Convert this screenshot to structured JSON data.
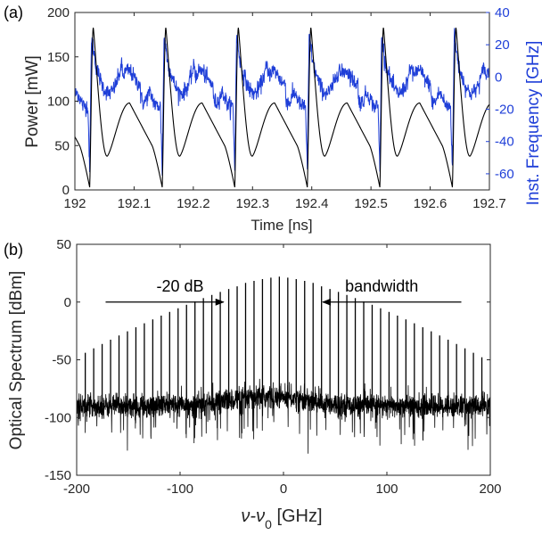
{
  "chart_data": [
    {
      "panel": "(a)",
      "type": "line",
      "xlabel": "Time [ns]",
      "ylabel_left": "Power [mW]",
      "ylabel_right": "Inst. Frequency [GHz]",
      "xlim": [
        192,
        192.7
      ],
      "ylim_left": [
        0,
        200
      ],
      "ylim_right": [
        -70,
        40
      ],
      "xticks": [
        "192",
        "192.1",
        "192.2",
        "192.3",
        "192.4",
        "192.5",
        "192.6",
        "192.7"
      ],
      "yticks_left": [
        "0",
        "50",
        "100",
        "150",
        "200"
      ],
      "yticks_right": [
        "-60",
        "-40",
        "-20",
        "0",
        "20",
        "40"
      ],
      "right_axis_color": "#1f3fd8",
      "series": [
        {
          "color": "#000000",
          "axis": "left",
          "period_ns": 0.1225,
          "first_dip_ns": 192.025,
          "peak_main_mW": 183,
          "peak_secondary_mW": 98,
          "min_mW": 3
        },
        {
          "color": "#1f3fd8",
          "axis": "right",
          "period_ns": 0.1225,
          "baseline_GHz": 0,
          "plateau_GHz": -13,
          "dip_min_GHz": -58,
          "spike_max_GHz": 26
        }
      ]
    },
    {
      "panel": "(b)",
      "type": "line",
      "xlabel": "ν-ν0 [GHz]",
      "xlabel_main": "ν-ν",
      "xlabel_sub": "0",
      "xlabel_unit": " [GHz]",
      "ylabel": "Optical Spectrum [dBm]",
      "xlim": [
        -200,
        200
      ],
      "ylim": [
        -150,
        50
      ],
      "xticks": [
        "-200",
        "-100",
        "0",
        "100",
        "200"
      ],
      "yticks": [
        "-150",
        "-100",
        "-50",
        "0",
        "50"
      ],
      "comb_spacing_GHz": 8.16,
      "comb_peak_dBm": 22,
      "comb_peak_at_GHz": -4,
      "noise_floor_dBm": -90,
      "annotations": [
        {
          "text": "-20 dB",
          "arrow_from_GHz": -172,
          "arrow_to_GHz": -58,
          "y_dBm": 0
        },
        {
          "text": "bandwidth",
          "arrow_from_GHz": 172,
          "arrow_to_GHz": 38,
          "y_dBm": 0
        }
      ],
      "series": [
        {
          "color": "#000000"
        }
      ]
    }
  ]
}
